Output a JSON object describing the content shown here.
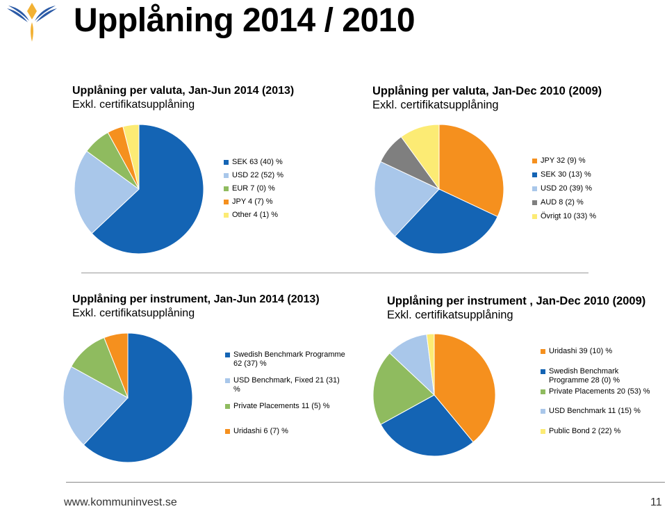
{
  "page": {
    "title": "Upplåning 2014 / 2010",
    "footer_url": "www.kommuninvest.se",
    "page_number": "11"
  },
  "charts": [
    {
      "title": "Upplåning per valuta, Jan-Jun 2014 (2013)",
      "subtitle": "Exkl. certifikatsupplåning"
    },
    {
      "title": "Upplåning per valuta, Jan-Dec 2010 (2009)",
      "subtitle": "Exkl. certifikatsupplåning"
    },
    {
      "title": "Upplåning per instrument, Jan-Jun 2014 (2013)",
      "subtitle": "Exkl. certifikatsupplåning"
    },
    {
      "title": "Upplåning per instrument , Jan-Dec 2010 (2009)",
      "subtitle": "Exkl. certifikatsupplåning"
    }
  ],
  "chart_data": [
    {
      "type": "pie",
      "title": "Upplåning per valuta, Jan-Jun 2014 (2013)",
      "subtitle": "Exkl. certifikatsupplåning",
      "legend_position": "right",
      "slices": [
        {
          "label": "SEK 63 (40) %",
          "value": 63,
          "color": "#1464B4"
        },
        {
          "label": "USD 22 (52) %",
          "value": 22,
          "color": "#A9C7EA"
        },
        {
          "label": "EUR 7 (0) %",
          "value": 7,
          "color": "#8FBB5F"
        },
        {
          "label": "JPY 4 (7) %",
          "value": 4,
          "color": "#F5901E"
        },
        {
          "label": "Other 4 (1) %",
          "value": 4,
          "color": "#FCEB74"
        }
      ]
    },
    {
      "type": "pie",
      "title": "Upplåning per valuta, Jan-Dec 2010 (2009)",
      "subtitle": "Exkl. certifikatsupplåning",
      "legend_position": "right",
      "slices": [
        {
          "label": "JPY 32 (9) %",
          "value": 32,
          "color": "#F5901E"
        },
        {
          "label": "SEK 30 (13) %",
          "value": 30,
          "color": "#1464B4"
        },
        {
          "label": "USD 20 (39) %",
          "value": 20,
          "color": "#A9C7EA"
        },
        {
          "label": "AUD 8 (2) %",
          "value": 8,
          "color": "#7F7F7F"
        },
        {
          "label": "Övrigt 10 (33) %",
          "value": 10,
          "color": "#FCEB74"
        }
      ]
    },
    {
      "type": "pie",
      "title": "Upplåning per instrument, Jan-Jun 2014 (2013)",
      "subtitle": "Exkl. certifikatsupplåning",
      "legend_position": "right",
      "slices": [
        {
          "label": "Swedish Benchmark Programme 62 (37) %",
          "value": 62,
          "color": "#1464B4"
        },
        {
          "label": "USD Benchmark, Fixed 21 (31) %",
          "value": 21,
          "color": "#A9C7EA"
        },
        {
          "label": "Private Placements 11 (5) %",
          "value": 11,
          "color": "#8FBB5F"
        },
        {
          "label": "Uridashi 6 (7) %",
          "value": 6,
          "color": "#F5901E"
        }
      ]
    },
    {
      "type": "pie",
      "title": "Upplåning per instrument , Jan-Dec 2010 (2009)",
      "subtitle": "Exkl. certifikatsupplåning",
      "legend_position": "right",
      "slices": [
        {
          "label": "Uridashi 39 (10) %",
          "value": 39,
          "color": "#F5901E"
        },
        {
          "label": "Swedish Benchmark Programme 28 (0) %",
          "value": 28,
          "color": "#1464B4"
        },
        {
          "label": "Private Placements 20 (53) %",
          "value": 20,
          "color": "#8FBB5F"
        },
        {
          "label": "USD Benchmark 11 (15) %",
          "value": 11,
          "color": "#A9C7EA"
        },
        {
          "label": "Public Bond 2 (22) %",
          "value": 2,
          "color": "#FCEB74"
        }
      ]
    }
  ]
}
